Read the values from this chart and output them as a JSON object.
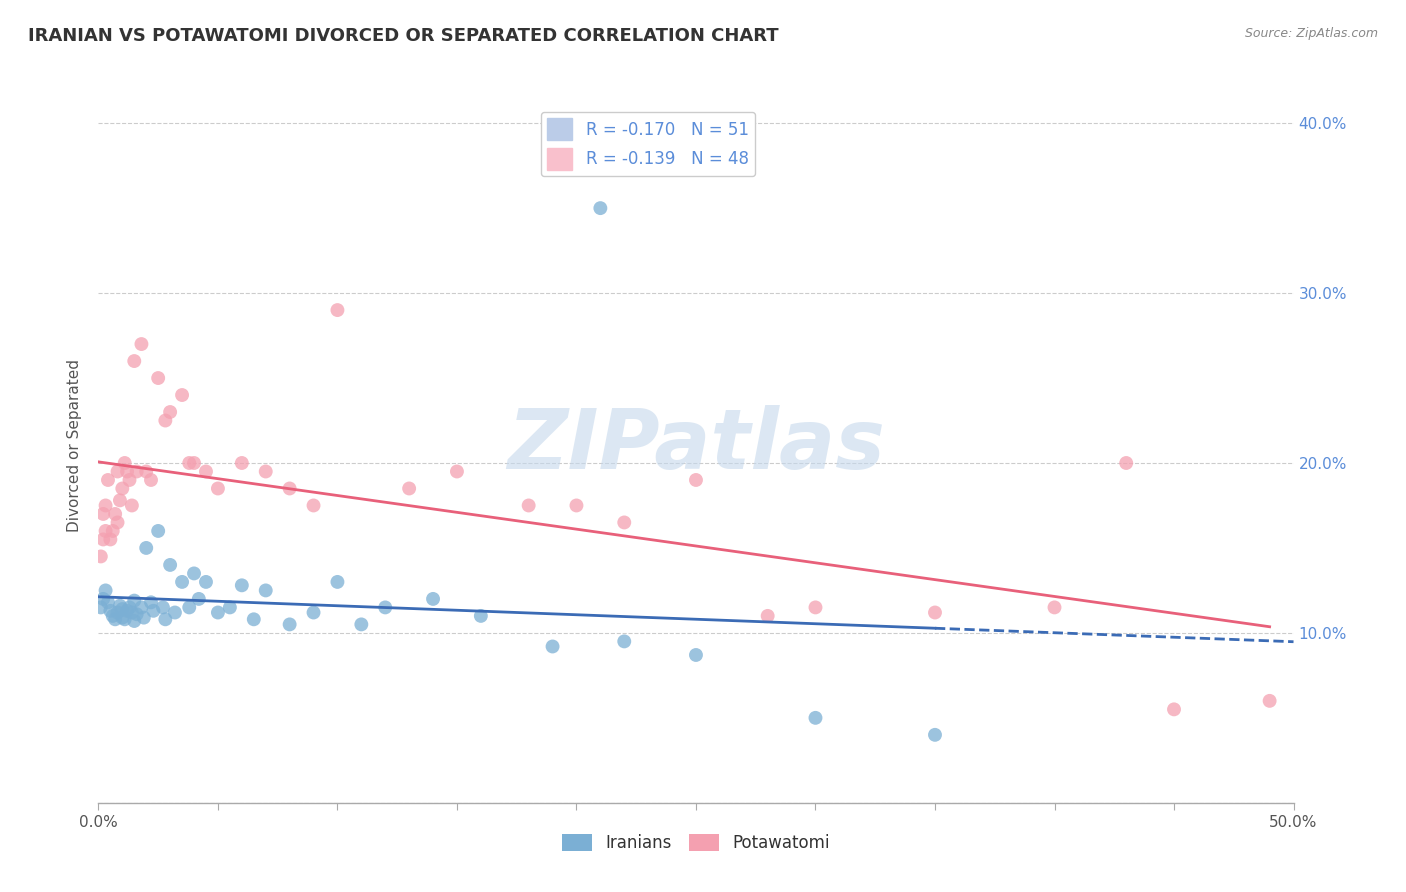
{
  "title": "IRANIAN VS POTAWATOMI DIVORCED OR SEPARATED CORRELATION CHART",
  "source": "Source: ZipAtlas.com",
  "ylabel": "Divorced or Separated",
  "watermark": "ZIPatlas",
  "xlim": [
    0.0,
    0.5
  ],
  "ylim": [
    0.0,
    0.42
  ],
  "x_ticks": [
    0.0,
    0.05,
    0.1,
    0.15,
    0.2,
    0.25,
    0.3,
    0.35,
    0.4,
    0.45,
    0.5
  ],
  "x_tick_labels": [
    "0.0%",
    "",
    "",
    "",
    "",
    "",
    "",
    "",
    "",
    "",
    "50.0%"
  ],
  "y_ticks": [
    0.1,
    0.2,
    0.3,
    0.4
  ],
  "y_tick_labels": [
    "10.0%",
    "20.0%",
    "30.0%",
    "40.0%"
  ],
  "iranians_R": -0.17,
  "iranians_N": 51,
  "potawatomi_R": -0.139,
  "potawatomi_N": 48,
  "iranian_color": "#7BAFD4",
  "potawatomi_color": "#F4A0B0",
  "iranian_line_color": "#3B6BB5",
  "potawatomi_line_color": "#E8607A",
  "background_color": "#ffffff",
  "axis_label_color": "#5B8DD9",
  "iranians_x": [
    0.001,
    0.002,
    0.003,
    0.004,
    0.005,
    0.006,
    0.007,
    0.008,
    0.009,
    0.01,
    0.01,
    0.011,
    0.012,
    0.013,
    0.014,
    0.015,
    0.015,
    0.016,
    0.018,
    0.019,
    0.02,
    0.022,
    0.023,
    0.025,
    0.027,
    0.028,
    0.03,
    0.032,
    0.035,
    0.038,
    0.04,
    0.042,
    0.045,
    0.05,
    0.055,
    0.06,
    0.065,
    0.07,
    0.08,
    0.09,
    0.1,
    0.11,
    0.12,
    0.14,
    0.16,
    0.19,
    0.22,
    0.25,
    0.21,
    0.3,
    0.35
  ],
  "iranians_y": [
    0.115,
    0.12,
    0.125,
    0.118,
    0.113,
    0.11,
    0.108,
    0.112,
    0.116,
    0.109,
    0.114,
    0.108,
    0.113,
    0.115,
    0.112,
    0.119,
    0.107,
    0.111,
    0.115,
    0.109,
    0.15,
    0.118,
    0.113,
    0.16,
    0.115,
    0.108,
    0.14,
    0.112,
    0.13,
    0.115,
    0.135,
    0.12,
    0.13,
    0.112,
    0.115,
    0.128,
    0.108,
    0.125,
    0.105,
    0.112,
    0.13,
    0.105,
    0.115,
    0.12,
    0.11,
    0.092,
    0.095,
    0.087,
    0.35,
    0.05,
    0.04
  ],
  "potawatomi_x": [
    0.001,
    0.002,
    0.002,
    0.003,
    0.003,
    0.004,
    0.005,
    0.006,
    0.007,
    0.008,
    0.008,
    0.009,
    0.01,
    0.011,
    0.012,
    0.013,
    0.014,
    0.015,
    0.016,
    0.018,
    0.02,
    0.022,
    0.025,
    0.028,
    0.03,
    0.035,
    0.038,
    0.04,
    0.045,
    0.05,
    0.06,
    0.07,
    0.08,
    0.09,
    0.1,
    0.13,
    0.15,
    0.18,
    0.2,
    0.22,
    0.25,
    0.28,
    0.3,
    0.35,
    0.4,
    0.43,
    0.45,
    0.49
  ],
  "potawatomi_y": [
    0.145,
    0.155,
    0.17,
    0.16,
    0.175,
    0.19,
    0.155,
    0.16,
    0.17,
    0.165,
    0.195,
    0.178,
    0.185,
    0.2,
    0.195,
    0.19,
    0.175,
    0.26,
    0.195,
    0.27,
    0.195,
    0.19,
    0.25,
    0.225,
    0.23,
    0.24,
    0.2,
    0.2,
    0.195,
    0.185,
    0.2,
    0.195,
    0.185,
    0.175,
    0.29,
    0.185,
    0.195,
    0.175,
    0.175,
    0.165,
    0.19,
    0.11,
    0.115,
    0.112,
    0.115,
    0.2,
    0.055,
    0.06
  ]
}
